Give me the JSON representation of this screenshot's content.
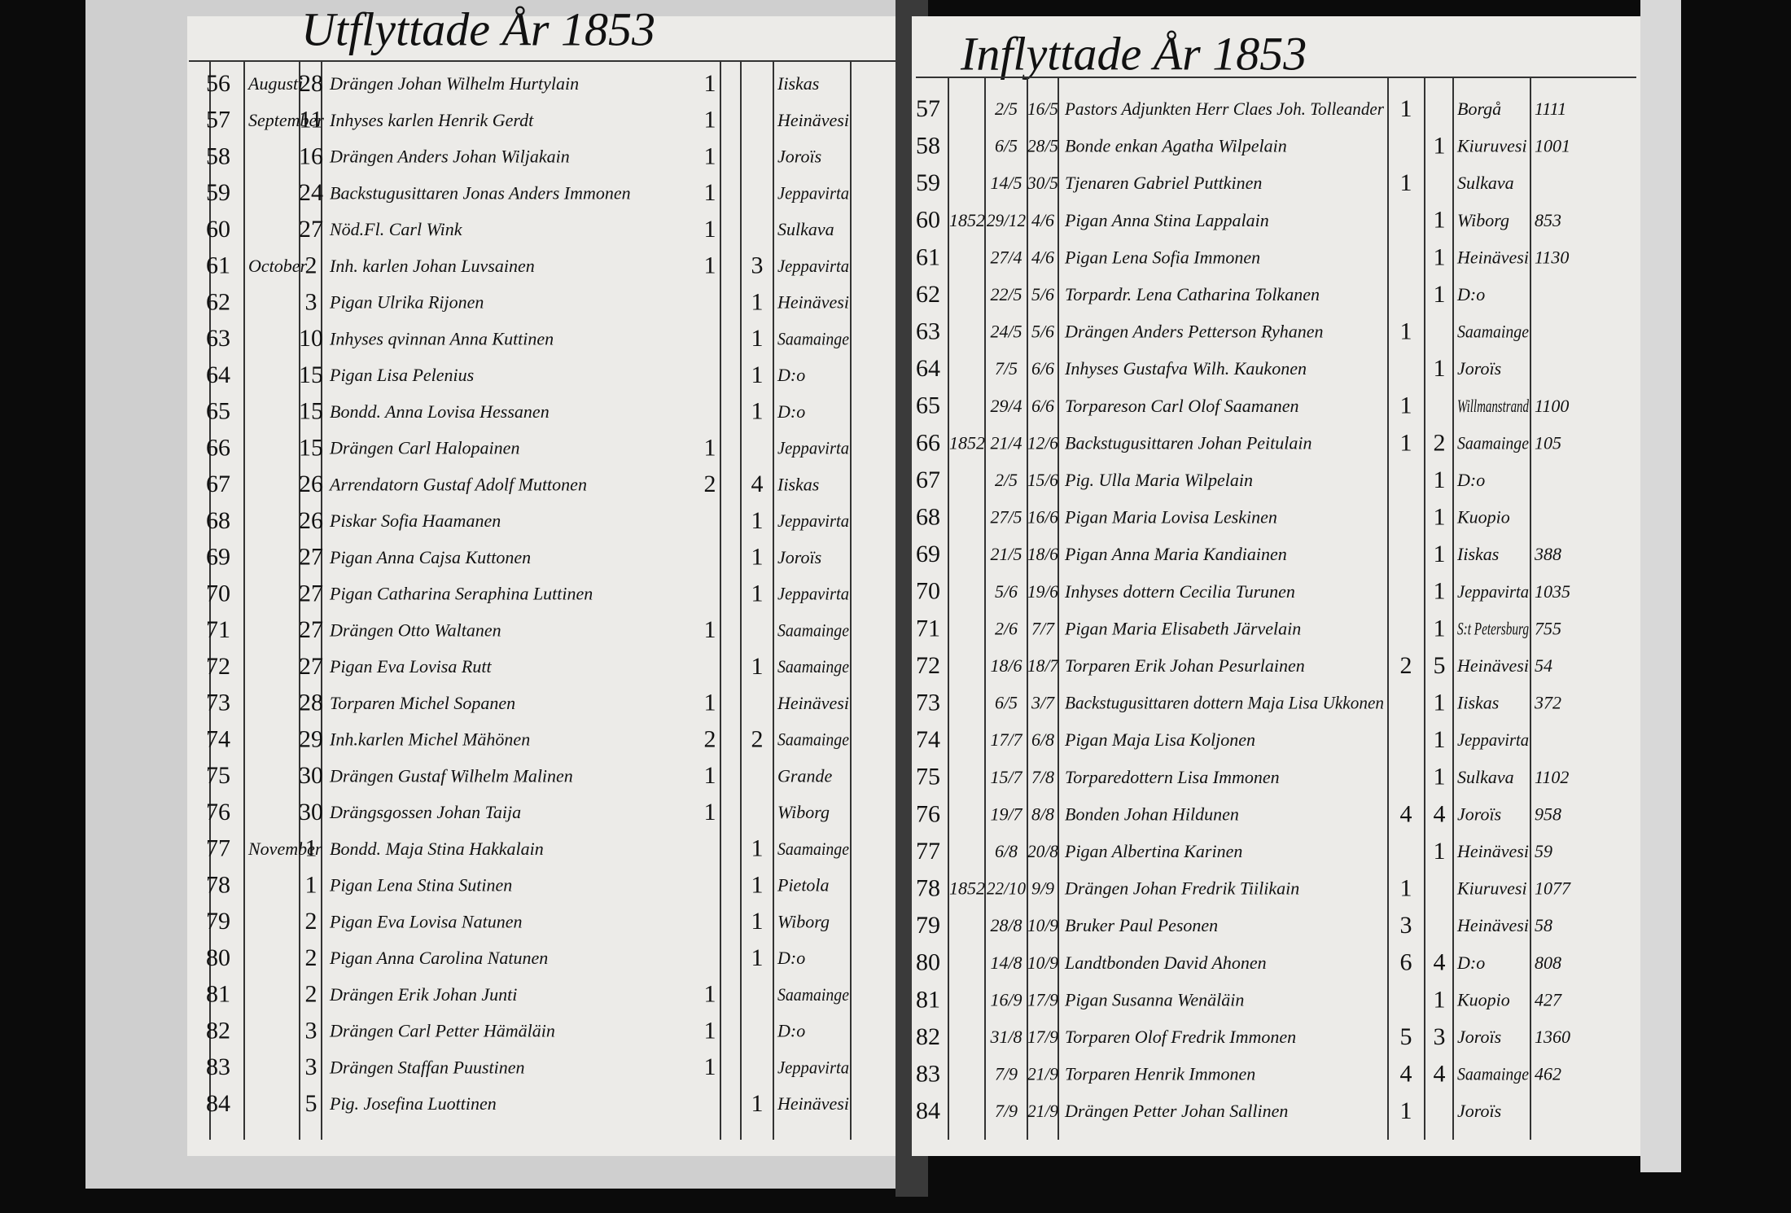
{
  "left": {
    "title": "Utflyttade År 1853",
    "rows": [
      {
        "n": "56",
        "m": "Augusti",
        "d": "28",
        "name": "Drängen Johan Wilhelm Hurtylain",
        "a": "1",
        "place": "Iiskas"
      },
      {
        "n": "57",
        "m": "September",
        "d": "11",
        "name": "Inhyses karlen Henrik Gerdt",
        "a": "1",
        "place": "Heinävesi"
      },
      {
        "n": "58",
        "d": "16",
        "name": "Drängen Anders Johan Wiljakain",
        "a": "1",
        "place": "Joroïs"
      },
      {
        "n": "59",
        "d": "24",
        "name": "Backstugusittaren Jonas Anders Immonen",
        "a": "1",
        "place": "Jeppavirta"
      },
      {
        "n": "60",
        "d": "27",
        "name": "Nöd.Fl. Carl Wink",
        "a": "1",
        "place": "Sulkava"
      },
      {
        "n": "61",
        "m": "October",
        "d": "2",
        "name": "Inh. karlen Johan Luvsainen",
        "a": "1",
        "b": "3",
        "place": "Jeppavirta"
      },
      {
        "n": "62",
        "d": "3",
        "name": "Pigan Ulrika Rijonen",
        "b": "1",
        "place": "Heinävesi"
      },
      {
        "n": "63",
        "d": "10",
        "name": "Inhyses qvinnan Anna Kuttinen",
        "b": "1",
        "place": "Saamainge"
      },
      {
        "n": "64",
        "d": "15",
        "name": "Pigan Lisa Pelenius",
        "b": "1",
        "place": "D:o"
      },
      {
        "n": "65",
        "d": "15",
        "name": "Bondd. Anna Lovisa Hessanen",
        "b": "1",
        "place": "D:o"
      },
      {
        "n": "66",
        "d": "15",
        "name": "Drängen Carl Halopainen",
        "a": "1",
        "place": "Jeppavirta"
      },
      {
        "n": "67",
        "d": "26",
        "name": "Arrendatorn Gustaf Adolf Muttonen",
        "a": "2",
        "b": "4",
        "place": "Iiskas"
      },
      {
        "n": "68",
        "d": "26",
        "name": "Piskar Sofia Haamanen",
        "b": "1",
        "place": "Jeppavirta"
      },
      {
        "n": "69",
        "d": "27",
        "name": "Pigan Anna Cajsa Kuttonen",
        "b": "1",
        "place": "Joroïs"
      },
      {
        "n": "70",
        "d": "27",
        "name": "Pigan Catharina Seraphina Luttinen",
        "b": "1",
        "place": "Jeppavirta"
      },
      {
        "n": "71",
        "d": "27",
        "name": "Drängen Otto Waltanen",
        "a": "1",
        "place": "Saamainge"
      },
      {
        "n": "72",
        "d": "27",
        "name": "Pigan Eva Lovisa Rutt",
        "b": "1",
        "place": "Saamainge"
      },
      {
        "n": "73",
        "d": "28",
        "name": "Torparen Michel Sopanen",
        "a": "1",
        "place": "Heinävesi"
      },
      {
        "n": "74",
        "d": "29",
        "name": "Inh.karlen Michel Mähönen",
        "a": "2",
        "b": "2",
        "place": "Saamainge"
      },
      {
        "n": "75",
        "d": "30",
        "name": "Drängen Gustaf Wilhelm Malinen",
        "a": "1",
        "place": "Grande"
      },
      {
        "n": "76",
        "d": "30",
        "name": "Drängsgossen Johan Taija",
        "a": "1",
        "place": "Wiborg"
      },
      {
        "n": "77",
        "m": "November",
        "d": "1",
        "name": "Bondd. Maja Stina Hakkalain",
        "b": "1",
        "place": "Saamainge"
      },
      {
        "n": "78",
        "d": "1",
        "name": "Pigan Lena Stina Sutinen",
        "b": "1",
        "place": "Pietola"
      },
      {
        "n": "79",
        "d": "2",
        "name": "Pigan Eva Lovisa Natunen",
        "b": "1",
        "place": "Wiborg"
      },
      {
        "n": "80",
        "d": "2",
        "name": "Pigan Anna Carolina Natunen",
        "b": "1",
        "place": "D:o"
      },
      {
        "n": "81",
        "d": "2",
        "name": "Drängen Erik Johan Junti",
        "a": "1",
        "place": "Saamainge"
      },
      {
        "n": "82",
        "d": "3",
        "name": "Drängen Carl Petter Hämäläin",
        "a": "1",
        "place": "D:o"
      },
      {
        "n": "83",
        "d": "3",
        "name": "Drängen Staffan Puustinen",
        "a": "1",
        "place": "Jeppavirta"
      },
      {
        "n": "84",
        "d": "5",
        "name": "Pig. Josefina Luottinen",
        "b": "1",
        "place": "Heinävesi"
      }
    ]
  },
  "right": {
    "title": "Inflyttade År 1853",
    "rows": [
      {
        "n": "57",
        "dt": "2/5",
        "d": "16/5",
        "name": "Pastors Adjunkten Herr Claes Joh. Tolleander",
        "a": "1",
        "place": "Borgå",
        "nr": "1111"
      },
      {
        "n": "58",
        "dt": "6/5",
        "d": "28/5",
        "name": "Bonde enkan Agatha Wilpelain",
        "b": "1",
        "place": "Kiuruvesi",
        "nr": "1001"
      },
      {
        "n": "59",
        "dt": "14/5",
        "d": "30/5",
        "name": "Tjenaren Gabriel Puttkinen",
        "a": "1",
        "place": "Sulkava"
      },
      {
        "n": "60",
        "y": "1852",
        "dt": "29/12",
        "d": "4/6",
        "name": "Pigan Anna Stina Lappalain",
        "b": "1",
        "place": "Wiborg",
        "nr": "853"
      },
      {
        "n": "61",
        "dt": "27/4",
        "d": "4/6",
        "name": "Pigan Lena Sofia Immonen",
        "b": "1",
        "place": "Heinävesi",
        "nr": "1130"
      },
      {
        "n": "62",
        "dt": "22/5",
        "d": "5/6",
        "name": "Torpardr. Lena Catharina Tolkanen",
        "b": "1",
        "place": "D:o"
      },
      {
        "n": "63",
        "dt": "24/5",
        "d": "5/6",
        "name": "Drängen Anders Petterson Ryhanen",
        "a": "1",
        "place": "Saamainge"
      },
      {
        "n": "64",
        "dt": "7/5",
        "d": "6/6",
        "name": "Inhyses Gustafva Wilh. Kaukonen",
        "b": "1",
        "place": "Joroïs"
      },
      {
        "n": "65",
        "dt": "29/4",
        "d": "6/6",
        "name": "Torpareson Carl Olof Saamanen",
        "a": "1",
        "place": "Willmanstrand",
        "nr": "1100"
      },
      {
        "n": "66",
        "y": "1852",
        "dt": "21/4",
        "d": "12/6",
        "name": "Backstugusittaren Johan Peitulain",
        "a": "1",
        "b": "2",
        "place": "Saamainge",
        "nr": "105"
      },
      {
        "n": "67",
        "dt": "2/5",
        "d": "15/6",
        "name": "Pig. Ulla Maria Wilpelain",
        "b": "1",
        "place": "D:o"
      },
      {
        "n": "68",
        "dt": "27/5",
        "d": "16/6",
        "name": "Pigan Maria Lovisa Leskinen",
        "b": "1",
        "place": "Kuopio"
      },
      {
        "n": "69",
        "dt": "21/5",
        "d": "18/6",
        "name": "Pigan Anna Maria Kandiainen",
        "b": "1",
        "place": "Iiskas",
        "nr": "388"
      },
      {
        "n": "70",
        "dt": "5/6",
        "d": "19/6",
        "name": "Inhyses dottern Cecilia Turunen",
        "b": "1",
        "place": "Jeppavirta",
        "nr": "1035"
      },
      {
        "n": "71",
        "dt": "2/6",
        "d": "7/7",
        "name": "Pigan Maria Elisabeth Järvelain",
        "b": "1",
        "place": "S:t Petersburg",
        "nr": "755"
      },
      {
        "n": "72",
        "dt": "18/6",
        "d": "18/7",
        "name": "Torparen Erik Johan Pesurlainen",
        "a": "2",
        "b": "5",
        "place": "Heinävesi",
        "nr": "54"
      },
      {
        "n": "73",
        "dt": "6/5",
        "d": "3/7",
        "name": "Backstugusittaren dottern Maja Lisa Ukkonen",
        "b": "1",
        "place": "Iiskas",
        "nr": "372"
      },
      {
        "n": "74",
        "dt": "17/7",
        "d": "6/8",
        "name": "Pigan Maja Lisa Koljonen",
        "b": "1",
        "place": "Jeppavirta"
      },
      {
        "n": "75",
        "dt": "15/7",
        "d": "7/8",
        "name": "Torparedottern Lisa Immonen",
        "b": "1",
        "place": "Sulkava",
        "nr": "1102"
      },
      {
        "n": "76",
        "dt": "19/7",
        "d": "8/8",
        "name": "Bonden Johan Hildunen",
        "a": "4",
        "b": "4",
        "place": "Joroïs",
        "nr": "958"
      },
      {
        "n": "77",
        "dt": "6/8",
        "d": "20/8",
        "name": "Pigan Albertina Karinen",
        "b": "1",
        "place": "Heinävesi",
        "nr": "59"
      },
      {
        "n": "78",
        "y": "1852",
        "dt": "22/10",
        "d": "9/9",
        "name": "Drängen Johan Fredrik Tiilikain",
        "a": "1",
        "place": "Kiuruvesi",
        "nr": "1077"
      },
      {
        "n": "79",
        "dt": "28/8",
        "d": "10/9",
        "name": "Bruker Paul Pesonen",
        "a": "3",
        "place": "Heinävesi",
        "nr": "58"
      },
      {
        "n": "80",
        "dt": "14/8",
        "d": "10/9",
        "name": "Landtbonden David Ahonen",
        "a": "6",
        "b": "4",
        "place": "D:o",
        "nr": "808"
      },
      {
        "n": "81",
        "dt": "16/9",
        "d": "17/9",
        "name": "Pigan Susanna Wenäläin",
        "b": "1",
        "place": "Kuopio",
        "nr": "427"
      },
      {
        "n": "82",
        "dt": "31/8",
        "d": "17/9",
        "name": "Torparen Olof Fredrik Immonen",
        "a": "5",
        "b": "3",
        "place": "Joroïs",
        "nr": "1360"
      },
      {
        "n": "83",
        "dt": "7/9",
        "d": "21/9",
        "name": "Torparen Henrik Immonen",
        "a": "4",
        "b": "4",
        "place": "Saamainge",
        "nr": "462"
      },
      {
        "n": "84",
        "dt": "7/9",
        "d": "21/9",
        "name": "Drängen Petter Johan Sallinen",
        "a": "1",
        "place": "Joroïs"
      }
    ]
  }
}
